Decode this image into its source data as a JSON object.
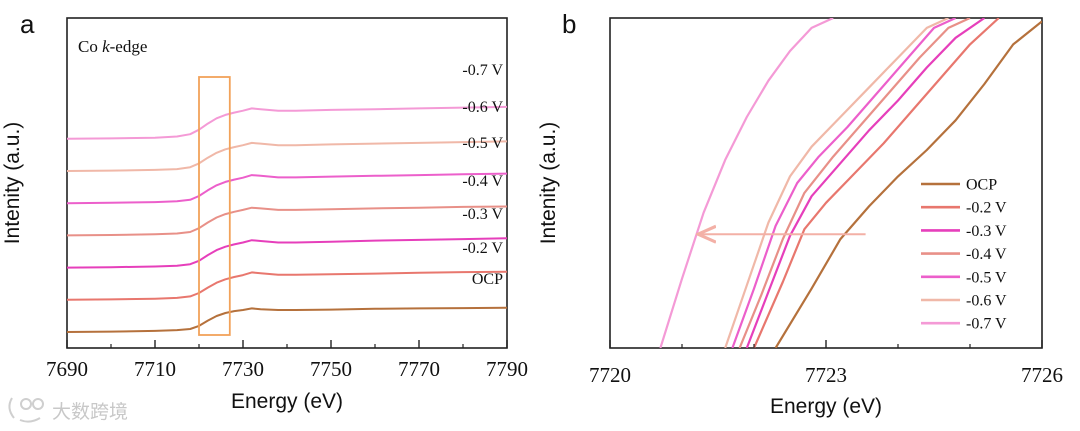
{
  "watermark": "大数跨境",
  "colors": {
    "OCP": "#b5713c",
    "-0.2 V": "#e8776e",
    "-0.3 V": "#e63fbb",
    "-0.4 V": "#e89088",
    "-0.5 V": "#ec5fcb",
    "-0.6 V": "#f0b8a8",
    "-0.7 V": "#f49ad6",
    "box": "#f2a25a",
    "arrow": "#f3b0a6"
  },
  "chart_data": [
    {
      "panel": "a",
      "type": "line",
      "annotation": "Co k-edge",
      "annotation_prefix": "Co ",
      "annotation_italic": "k",
      "annotation_suffix": "-edge",
      "xlabel": "Energy (eV)",
      "ylabel": "Intenity (a.u.)",
      "xlim": [
        7690,
        7790
      ],
      "xticks": [
        "7690",
        "7710",
        "7730",
        "7750",
        "7770",
        "7790"
      ],
      "yticks_shown": false,
      "series_labels": [
        "-0.7 V",
        "-0.6 V",
        "-0.5 V",
        "-0.4 V",
        "-0.3 V",
        "-0.2 V",
        "OCP"
      ],
      "highlight_box_x": [
        7720,
        7727
      ],
      "series": [
        {
          "name": "OCP",
          "offset": 0.0,
          "x": [
            7690,
            7700,
            7710,
            7715,
            7718,
            7720,
            7722,
            7724,
            7726,
            7728,
            7730,
            7732,
            7734,
            7738,
            7742,
            7750,
            7760,
            7770,
            7780,
            7790
          ],
          "values": [
            0.0,
            0.01,
            0.03,
            0.05,
            0.08,
            0.16,
            0.3,
            0.42,
            0.5,
            0.55,
            0.58,
            0.62,
            0.6,
            0.58,
            0.58,
            0.59,
            0.61,
            0.62,
            0.63,
            0.64
          ]
        },
        {
          "name": "-0.2 V",
          "offset": 1.0,
          "x": [
            7690,
            7700,
            7710,
            7715,
            7718,
            7720,
            7722,
            7724,
            7726,
            7728,
            7730,
            7732,
            7734,
            7738,
            7742,
            7750,
            7760,
            7770,
            7780,
            7790
          ],
          "values": [
            0.0,
            0.01,
            0.03,
            0.05,
            0.09,
            0.18,
            0.32,
            0.45,
            0.54,
            0.6,
            0.65,
            0.72,
            0.7,
            0.66,
            0.66,
            0.67,
            0.69,
            0.71,
            0.73,
            0.74
          ]
        },
        {
          "name": "-0.3 V",
          "offset": 2.0,
          "x": [
            7690,
            7700,
            7710,
            7715,
            7718,
            7720,
            7722,
            7724,
            7726,
            7728,
            7730,
            7732,
            7734,
            7738,
            7742,
            7750,
            7760,
            7770,
            7780,
            7790
          ],
          "values": [
            0.0,
            0.01,
            0.03,
            0.05,
            0.09,
            0.18,
            0.33,
            0.46,
            0.55,
            0.61,
            0.66,
            0.72,
            0.7,
            0.66,
            0.66,
            0.68,
            0.71,
            0.73,
            0.75,
            0.77
          ]
        },
        {
          "name": "-0.4 V",
          "offset": 3.0,
          "x": [
            7690,
            7700,
            7710,
            7715,
            7718,
            7720,
            7722,
            7724,
            7726,
            7728,
            7730,
            7732,
            7734,
            7738,
            7742,
            7750,
            7760,
            7770,
            7780,
            7790
          ],
          "values": [
            0.0,
            0.01,
            0.03,
            0.05,
            0.09,
            0.19,
            0.34,
            0.47,
            0.56,
            0.62,
            0.67,
            0.73,
            0.71,
            0.67,
            0.67,
            0.69,
            0.71,
            0.73,
            0.75,
            0.76
          ]
        },
        {
          "name": "-0.5 V",
          "offset": 4.0,
          "x": [
            7690,
            7700,
            7710,
            7715,
            7718,
            7720,
            7722,
            7724,
            7726,
            7728,
            7730,
            7732,
            7734,
            7738,
            7742,
            7750,
            7760,
            7770,
            7780,
            7790
          ],
          "values": [
            0.0,
            0.01,
            0.03,
            0.05,
            0.09,
            0.19,
            0.34,
            0.47,
            0.56,
            0.62,
            0.67,
            0.74,
            0.72,
            0.68,
            0.68,
            0.7,
            0.72,
            0.74,
            0.76,
            0.78
          ]
        },
        {
          "name": "-0.6 V",
          "offset": 5.0,
          "x": [
            7690,
            7700,
            7710,
            7715,
            7718,
            7720,
            7722,
            7724,
            7726,
            7728,
            7730,
            7732,
            7734,
            7738,
            7742,
            7750,
            7760,
            7770,
            7780,
            7790
          ],
          "values": [
            0.0,
            0.01,
            0.03,
            0.05,
            0.1,
            0.2,
            0.35,
            0.48,
            0.57,
            0.63,
            0.68,
            0.74,
            0.72,
            0.68,
            0.68,
            0.7,
            0.72,
            0.74,
            0.76,
            0.78
          ]
        },
        {
          "name": "-0.7 V",
          "offset": 6.0,
          "x": [
            7690,
            7700,
            7710,
            7715,
            7718,
            7720,
            7722,
            7724,
            7726,
            7728,
            7730,
            7732,
            7734,
            7738,
            7742,
            7750,
            7760,
            7770,
            7780,
            7790
          ],
          "values": [
            0.0,
            0.01,
            0.03,
            0.06,
            0.12,
            0.24,
            0.4,
            0.54,
            0.63,
            0.69,
            0.74,
            0.8,
            0.78,
            0.74,
            0.74,
            0.76,
            0.78,
            0.8,
            0.82,
            0.84
          ]
        }
      ]
    },
    {
      "panel": "b",
      "type": "line",
      "xlabel": "Energy (eV)",
      "ylabel": "Intenity (a.u.)",
      "xlim": [
        7720,
        7726
      ],
      "xticks": [
        "7720",
        "7723",
        "7726"
      ],
      "yticks_shown": false,
      "ylim": [
        0,
        1
      ],
      "legend": [
        "OCP",
        "-0.2 V",
        "-0.3 V",
        "-0.4 V",
        "-0.5 V",
        "-0.6 V",
        "-0.7 V"
      ],
      "legend_position": "right",
      "arrow": {
        "from_x": 7723.55,
        "to_x": 7721.25,
        "y": 0.345
      },
      "series": [
        {
          "name": "OCP",
          "x": [
            7722.3,
            7722.8,
            7723.2,
            7723.6,
            7724.0,
            7724.4,
            7724.8,
            7725.2,
            7725.6,
            7726.0
          ],
          "values": [
            0.0,
            0.18,
            0.33,
            0.43,
            0.52,
            0.6,
            0.69,
            0.8,
            0.92,
            0.99
          ]
        },
        {
          "name": "-0.2 V",
          "x": [
            7722.0,
            7722.4,
            7722.7,
            7723.0,
            7723.4,
            7723.8,
            7724.2,
            7724.6,
            7725.0,
            7725.4
          ],
          "values": [
            0.0,
            0.2,
            0.36,
            0.44,
            0.53,
            0.62,
            0.72,
            0.82,
            0.92,
            1.0
          ]
        },
        {
          "name": "-0.3 V",
          "x": [
            7721.9,
            7722.2,
            7722.5,
            7722.8,
            7723.2,
            7723.6,
            7724.0,
            7724.4,
            7724.8,
            7725.2
          ],
          "values": [
            0.0,
            0.17,
            0.34,
            0.46,
            0.56,
            0.66,
            0.75,
            0.85,
            0.94,
            1.0
          ]
        },
        {
          "name": "-0.4 V",
          "x": [
            7721.8,
            7722.1,
            7722.4,
            7722.7,
            7723.1,
            7723.5,
            7723.9,
            7724.3,
            7724.7,
            7725.0
          ],
          "values": [
            0.0,
            0.16,
            0.33,
            0.47,
            0.58,
            0.68,
            0.78,
            0.88,
            0.97,
            1.0
          ]
        },
        {
          "name": "-0.5 V",
          "x": [
            7721.7,
            7722.0,
            7722.3,
            7722.6,
            7722.9,
            7723.3,
            7723.7,
            7724.1,
            7724.5,
            7724.8
          ],
          "values": [
            0.0,
            0.18,
            0.37,
            0.5,
            0.58,
            0.67,
            0.77,
            0.87,
            0.97,
            1.0
          ]
        },
        {
          "name": "-0.6 V",
          "x": [
            7721.6,
            7721.9,
            7722.2,
            7722.5,
            7722.8,
            7723.2,
            7723.6,
            7724.0,
            7724.4,
            7724.7
          ],
          "values": [
            0.0,
            0.19,
            0.38,
            0.52,
            0.61,
            0.7,
            0.79,
            0.88,
            0.97,
            1.0
          ]
        },
        {
          "name": "-0.7 V",
          "x": [
            7720.7,
            7721.0,
            7721.3,
            7721.6,
            7721.9,
            7722.2,
            7722.5,
            7722.8,
            7723.1
          ],
          "values": [
            0.0,
            0.21,
            0.41,
            0.57,
            0.7,
            0.81,
            0.9,
            0.97,
            1.0
          ]
        }
      ]
    }
  ]
}
